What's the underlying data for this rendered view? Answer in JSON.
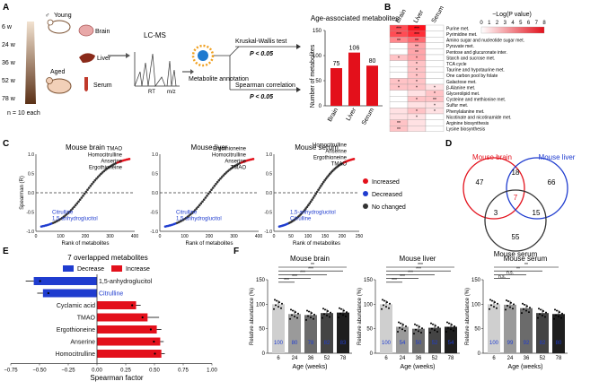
{
  "panels": {
    "A": "A",
    "B": "B",
    "C": "C",
    "D": "D",
    "E": "E",
    "F": "F"
  },
  "panel_a": {
    "ages": [
      "6 w",
      "24 w",
      "36 w",
      "52 w",
      "78 w"
    ],
    "young_label": "Young",
    "aged_label": "Aged",
    "n_label": "n = 10 each",
    "tissues": [
      "Brain",
      "Liver",
      "Serum"
    ],
    "lcms_label": "LC-MS",
    "rt_label": "RT",
    "mz_label": "m/z",
    "annotation_label": "Metabolite annotation",
    "kruskal_label": "Kruskal-Wallis test",
    "spearman_label": "Spearman correlation",
    "p_label": "P < 0.05",
    "chart_title": "Age-associated metabolites",
    "ylabel": "Number of metabolites"
  },
  "panel_b": {
    "col_labels": [
      "Brain",
      "Liver",
      "Serum"
    ],
    "legend_title": "−Log(P value)",
    "legend_ticks": [
      "0",
      "1",
      "2",
      "3",
      "4",
      "5",
      "6",
      "7",
      "8"
    ],
    "pathways": [
      "Purine met.",
      "Pyrimidine met.",
      "Amino sugar and nucleotide sugar met.",
      "Pyruvate met.",
      "Pentose and glucuronate inter.",
      "Starch and sucrose met.",
      "TCA cycle",
      "Taurine and hypotaurine met.",
      "One carbon pool by folate",
      "Galactose met.",
      "β-Alanine met.",
      "Glycerolipid met.",
      "Cysteine and methionine met.",
      "Sulfur met.",
      "Phenylalanine met.",
      "Nicotinate and nicotinamide met.",
      "Arginine biosynthesis",
      "Lysine biosynthesis"
    ]
  },
  "panel_c": {
    "ylabel": "Spearman (R)",
    "xlabel": "Rank of metabolites",
    "titles": [
      "Mouse brain",
      "Mouse liver",
      "Mouse serum"
    ],
    "brain_labels": [
      "TMAO",
      "Homocitrulline",
      "Anserine",
      "Ergothioneine",
      "Citrulline",
      "1,5-anhydroglucitol"
    ],
    "liver_labels": [
      "Ergothioneine",
      "Homocitrulline",
      "Anserine",
      "TMAO",
      "Citrulline",
      "1,5-anhydroglucitol"
    ],
    "serum_labels": [
      "Homocitrulline",
      "Anserine",
      "Ergothioneine",
      "TMAO",
      "1,5-anhydroglucitol",
      "Citrulline"
    ],
    "legend": [
      "Increased",
      "Decreased",
      "No changed"
    ],
    "brain_ticks_x": [
      "0",
      "100",
      "200",
      "300",
      "400"
    ],
    "liver_ticks_x": [
      "0",
      "100",
      "200",
      "300",
      "400"
    ],
    "serum_ticks_x": [
      "0",
      "50",
      "100",
      "150",
      "200",
      "250"
    ],
    "ticks_y": [
      "1.0",
      "0.5",
      "0.0",
      "-0.5",
      "-1.0"
    ]
  },
  "panel_d": {
    "brain": "Mouse brain",
    "liver": "Mouse liver",
    "serum": "Mouse serum",
    "counts": {
      "brain_only": "47",
      "liver_only": "66",
      "serum_only": "55",
      "brain_liver": "18",
      "brain_serum": "3",
      "liver_serum": "15",
      "all": "7"
    }
  },
  "panel_e": {
    "title": "7 overlapped metabolites",
    "legend_decrease": "Decrease",
    "legend_increase": "Increase",
    "xlabel": "Spearman factor",
    "x_ticks": [
      "−0.75",
      "−0.50",
      "−0.25",
      "0.00",
      "0.25",
      "0.50",
      "0.75",
      "1.00"
    ]
  },
  "panel_f": {
    "ylabel": "Relative abundance (%)",
    "xlabel": "Age (weeks)",
    "titles": [
      "Mouse brain",
      "Mouse liver",
      "Mouse serum"
    ],
    "ages": [
      "6",
      "24",
      "36",
      "52",
      "78"
    ],
    "y_ticks": [
      "150",
      "100",
      "50",
      "0"
    ],
    "sig_brain": [
      "**",
      "***",
      "***",
      "***",
      "***"
    ],
    "sig_liver": [
      "***",
      "***",
      "***",
      "***",
      "***"
    ],
    "sig_serum": [
      "**",
      "**",
      "n.s.",
      "n.s."
    ]
  },
  "colors": {
    "red": "#e3101b",
    "blue": "#1f3ccf",
    "grey": "#333333"
  },
  "chart_data": [
    {
      "type": "bar",
      "title": "Age-associated metabolites",
      "categories": [
        "Brain",
        "Liver",
        "Serum"
      ],
      "values": [
        75,
        106,
        80
      ],
      "ylabel": "Number of metabolites",
      "ylim": [
        0,
        150
      ],
      "yticks": [
        0,
        50,
        100,
        150
      ]
    },
    {
      "type": "heatmap",
      "title": "−Log(P value)",
      "columns": [
        "Brain",
        "Liver",
        "Serum"
      ],
      "rows": [
        "Purine met.",
        "Pyrimidine met.",
        "Amino sugar and nucleotide sugar met.",
        "Pyruvate met.",
        "Pentose and glucuronate inter.",
        "Starch and sucrose met.",
        "TCA cycle",
        "Taurine and hypotaurine met.",
        "One carbon pool by folate",
        "Galactose met.",
        "β-Alanine met.",
        "Glycerolipid met.",
        "Cysteine and methionine met.",
        "Sulfur met.",
        "Phenylalanine met.",
        "Nicotinate and nicotinamide met.",
        "Arginine biosynthesis",
        "Lysine biosynthesis"
      ],
      "values": [
        [
          6,
          8,
          0
        ],
        [
          6,
          7,
          0
        ],
        [
          4,
          5,
          0
        ],
        [
          0,
          3,
          0
        ],
        [
          0,
          3,
          0
        ],
        [
          2,
          3,
          0
        ],
        [
          0,
          2,
          0
        ],
        [
          0,
          2,
          0
        ],
        [
          0,
          2,
          0
        ],
        [
          2,
          2,
          0
        ],
        [
          2,
          2,
          1
        ],
        [
          0,
          1,
          2
        ],
        [
          0,
          2,
          2
        ],
        [
          0,
          1,
          1
        ],
        [
          1,
          2,
          1
        ],
        [
          1,
          1,
          0
        ],
        [
          2,
          1,
          0
        ],
        [
          2,
          1,
          0
        ]
      ],
      "stars": [
        [
          "***",
          "***",
          ""
        ],
        [
          "***",
          "***",
          ""
        ],
        [
          "**",
          "**",
          ""
        ],
        [
          "",
          "**",
          ""
        ],
        [
          "",
          "**",
          ""
        ],
        [
          "*",
          "*",
          ""
        ],
        [
          "",
          "*",
          ""
        ],
        [
          "",
          "*",
          ""
        ],
        [
          "",
          "*",
          ""
        ],
        [
          "*",
          "*",
          ""
        ],
        [
          "*",
          "*",
          "*"
        ],
        [
          "",
          "",
          "*"
        ],
        [
          "",
          "*",
          "**"
        ],
        [
          "",
          "",
          "*"
        ],
        [
          "",
          "*",
          "*"
        ],
        [
          "",
          "*",
          ""
        ],
        [
          "**",
          "",
          ""
        ],
        [
          "**",
          "",
          ""
        ]
      ],
      "range": [
        0,
        8
      ]
    },
    {
      "type": "bar",
      "title": "7 overlapped metabolites",
      "orientation": "horizontal",
      "categories": [
        "1,5-anhydroglucitol",
        "Citrulline",
        "Cyclamic acid",
        "TMAO",
        "Ergothioneine",
        "Anserine",
        "Homocitrulline"
      ],
      "values": [
        -0.55,
        -0.47,
        0.34,
        0.44,
        0.52,
        0.55,
        0.56
      ],
      "errors": [
        0.07,
        0.05,
        0.04,
        0.1,
        0.04,
        0.03,
        0.03
      ],
      "xlabel": "Spearman factor",
      "xlim": [
        -0.75,
        1.0
      ]
    },
    {
      "type": "bar",
      "title": "Mouse brain",
      "categories": [
        "6",
        "24",
        "36",
        "52",
        "78"
      ],
      "values": [
        100,
        80,
        78,
        82,
        83
      ],
      "ylabel": "Relative abundance (%)",
      "xlabel": "Age (weeks)",
      "ylim": [
        0,
        150
      ]
    },
    {
      "type": "bar",
      "title": "Mouse liver",
      "categories": [
        "6",
        "24",
        "36",
        "52",
        "78"
      ],
      "values": [
        100,
        54,
        50,
        52,
        54
      ],
      "ylabel": "Relative abundance (%)",
      "xlabel": "Age (weeks)",
      "ylim": [
        0,
        150
      ]
    },
    {
      "type": "bar",
      "title": "Mouse serum",
      "categories": [
        "6",
        "24",
        "36",
        "52",
        "78"
      ],
      "values": [
        100,
        99,
        92,
        82,
        80
      ],
      "ylabel": "Relative abundance (%)",
      "xlabel": "Age (weeks)",
      "ylim": [
        0,
        150
      ]
    }
  ]
}
